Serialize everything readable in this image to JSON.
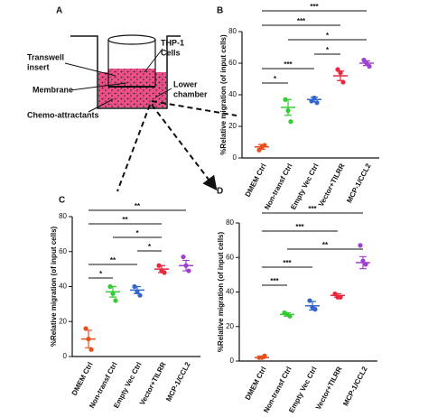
{
  "panel_labels": [
    "A",
    "B",
    "C",
    "D"
  ],
  "diagram": {
    "transwell_insert": [
      "Transwell",
      "insert"
    ],
    "thp1_cells": [
      "THP-1",
      "Cells"
    ],
    "membrane": [
      "Membrane"
    ],
    "lower_chamber": [
      "Lower",
      "chamber"
    ],
    "chemo_attractants": [
      "Chemo-attractants"
    ]
  },
  "chart_data": [
    {
      "type": "scatter",
      "y_label": "%Relative migration (of input cells)",
      "categories": [
        "DMEM Ctrl",
        "Non-transf Ctrl",
        "Empty Vec Ctrl",
        "Vector+TILRR",
        "MCP-1/CCL2"
      ],
      "colors": [
        "#e8501e",
        "#33cc33",
        "#3366cc",
        "#e8283c",
        "#a040d0"
      ],
      "points": [
        [
          5,
          7,
          8
        ],
        [
          37,
          30,
          23
        ],
        [
          36,
          38,
          35
        ],
        [
          56,
          54,
          48
        ],
        [
          62,
          60,
          58
        ]
      ],
      "means": [
        7,
        32,
        37,
        52,
        60
      ],
      "errors": [
        1.5,
        5,
        1.5,
        3,
        1.5
      ],
      "ylim": [
        0,
        80
      ],
      "yticks": [
        0,
        20,
        40,
        60,
        80
      ],
      "significance": [
        {
          "between": [
            "DMEM Ctrl",
            "MCP-1/CCL2"
          ],
          "label": "***"
        },
        {
          "between": [
            "DMEM Ctrl",
            "Vector+TILRR"
          ],
          "label": "***"
        },
        {
          "between": [
            "Non-transf Ctrl",
            "MCP-1/CCL2"
          ],
          "label": "*"
        },
        {
          "between": [
            "Empty Vec Ctrl",
            "Vector+TILRR"
          ],
          "label": "*"
        },
        {
          "between": [
            "DMEM Ctrl",
            "Empty Vec Ctrl"
          ],
          "label": "***"
        },
        {
          "between": [
            "DMEM Ctrl",
            "Non-transf Ctrl"
          ],
          "label": "*"
        }
      ]
    },
    {
      "type": "scatter",
      "y_label": "%Relative migration (of input cells)",
      "categories": [
        "DMEM Ctrl",
        "Non-transf Ctrl",
        "Empty Vec Ctrl",
        "Vector+TILRR",
        "MCP-1/CCL2"
      ],
      "colors": [
        "#e8501e",
        "#33cc33",
        "#3366cc",
        "#e8283c",
        "#a040d0"
      ],
      "points": [
        [
          16,
          10,
          4
        ],
        [
          40,
          36,
          32
        ],
        [
          40,
          37,
          35
        ],
        [
          52,
          49,
          48
        ],
        [
          57,
          52,
          49
        ]
      ],
      "means": [
        10,
        37,
        38,
        50,
        52
      ],
      "errors": [
        5,
        3,
        2,
        2,
        3
      ],
      "ylim": [
        0,
        80
      ],
      "yticks": [
        0,
        20,
        40,
        60,
        80
      ],
      "significance": [
        {
          "between": [
            "DMEM Ctrl",
            "MCP-1/CCL2"
          ],
          "label": "**"
        },
        {
          "between": [
            "DMEM Ctrl",
            "Vector+TILRR"
          ],
          "label": "**"
        },
        {
          "between": [
            "Non-transf Ctrl",
            "Vector+TILRR"
          ],
          "label": "*"
        },
        {
          "between": [
            "Empty Vec Ctrl",
            "Vector+TILRR"
          ],
          "label": "*"
        },
        {
          "between": [
            "DMEM Ctrl",
            "Empty Vec Ctrl"
          ],
          "label": "**"
        },
        {
          "between": [
            "DMEM Ctrl",
            "Non-transf Ctrl"
          ],
          "label": "*"
        }
      ]
    },
    {
      "type": "scatter",
      "y_label": "%Relative migration (of input cells)",
      "categories": [
        "DMEM Ctrl",
        "Non-transf Ctrl",
        "Empty Vec Ctrl",
        "Vector+TILRR",
        "MCP-1/CCL2"
      ],
      "colors": [
        "#e8501e",
        "#33cc33",
        "#3366cc",
        "#e8283c",
        "#a040d0"
      ],
      "points": [
        [
          2,
          2,
          3
        ],
        [
          28,
          27,
          26
        ],
        [
          35,
          31,
          30
        ],
        [
          39,
          37,
          37
        ],
        [
          67,
          58,
          56
        ]
      ],
      "means": [
        2,
        27,
        32,
        38,
        57
      ],
      "errors": [
        0.5,
        1,
        2.5,
        1,
        3.5
      ],
      "ylim": [
        0,
        80
      ],
      "yticks": [
        0,
        20,
        40,
        60,
        80
      ],
      "significance": [
        {
          "between": [
            "DMEM Ctrl",
            "MCP-1/CCL2"
          ],
          "label": "***"
        },
        {
          "between": [
            "DMEM Ctrl",
            "Vector+TILRR"
          ],
          "label": "***"
        },
        {
          "between": [
            "Non-transf Ctrl",
            "MCP-1/CCL2"
          ],
          "label": "**"
        },
        {
          "between": [
            "DMEM Ctrl",
            "Empty Vec Ctrl"
          ],
          "label": "***"
        },
        {
          "between": [
            "DMEM Ctrl",
            "Non-transf Ctrl"
          ],
          "label": "***"
        }
      ]
    }
  ]
}
